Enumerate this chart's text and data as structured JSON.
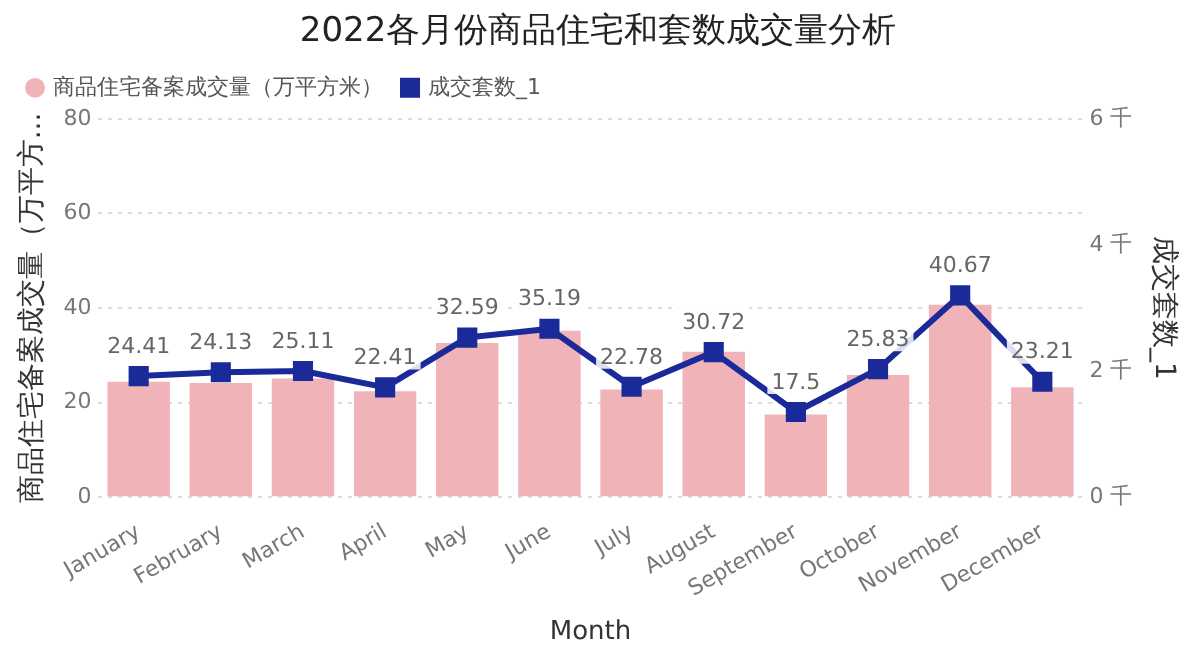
{
  "chart_data": {
    "type": "bar",
    "title": "2022各月份商品住宅和套数成交量分析",
    "xlabel": "Month",
    "ylabel": "商品住宅备案成交量（万平方...",
    "y2label": "成交套数_1",
    "categories": [
      "January",
      "February",
      "March",
      "April",
      "May",
      "June",
      "July",
      "August",
      "September",
      "October",
      "November",
      "December"
    ],
    "series": [
      {
        "name": "商品住宅备案成交量（万平方米）",
        "color": "#f0b3b8",
        "values": [
          24.41,
          24.13,
          25.11,
          22.41,
          32.59,
          35.19,
          22.78,
          30.72,
          17.5,
          25.83,
          40.67,
          23.21
        ],
        "value_labels": [
          "24.41",
          "24.13",
          "25.11",
          "22.41",
          "32.59",
          "35.19",
          "22.78",
          "30.72",
          "17.5",
          "25.83",
          "40.67",
          "23.21"
        ]
      },
      {
        "name": "成交套数_1",
        "type": "line",
        "axis": "y2",
        "color": "#1a2b99",
        "marker": "square",
        "values": [
          1.92,
          1.98,
          2.0,
          1.74,
          2.53,
          2.67,
          1.75,
          2.3,
          1.35,
          2.03,
          3.2,
          1.83
        ]
      }
    ],
    "ylim": [
      0,
      80
    ],
    "yticks": [
      0,
      20,
      40,
      60,
      80
    ],
    "y2lim": [
      0,
      6
    ],
    "y2ticks": [
      {
        "value": 0,
        "label": "0 千"
      },
      {
        "value": 2,
        "label": "2 千"
      },
      {
        "value": 4,
        "label": "4 千"
      },
      {
        "value": 6,
        "label": "6 千"
      }
    ],
    "grid": "y",
    "legend": "top left"
  }
}
